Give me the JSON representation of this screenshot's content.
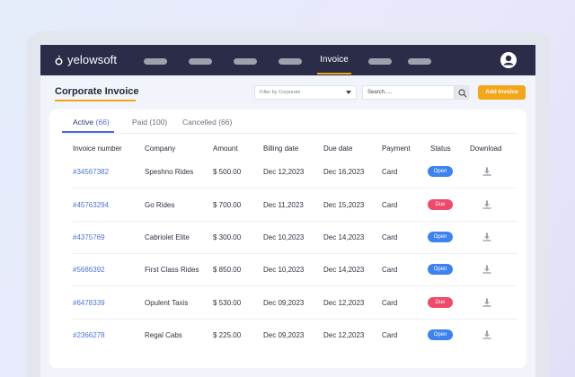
{
  "app": {
    "brand": "yelowsoft",
    "active_nav": "Invoice"
  },
  "page": {
    "title": "Corporate Invoice",
    "filter_placeholder": "Filter by Corporate",
    "search_placeholder": "Search.....",
    "add_button": "Add Invoice"
  },
  "tabs": [
    {
      "label": "Active",
      "count": "(66)"
    },
    {
      "label": "Paid",
      "count": "(100)"
    },
    {
      "label": "Cancelled",
      "count": "(66)"
    }
  ],
  "table": {
    "headers": [
      "Invoice number",
      "Company",
      "Amount",
      "Billing date",
      "Due date",
      "Payment",
      "Status",
      "Download"
    ],
    "rows": [
      {
        "invoice": "#34567382",
        "company": "Speshno Rides",
        "amount": "$ 500.00",
        "billing": "Dec 12,2023",
        "due": "Dec 16,2023",
        "payment": "Card",
        "status": "Open"
      },
      {
        "invoice": "#45763294",
        "company": "Go Rides",
        "amount": "$ 700.00",
        "billing": "Dec 11,2023",
        "due": "Dec 15,2023",
        "payment": "Card",
        "status": "Due"
      },
      {
        "invoice": "#4375769",
        "company": "Cabriolet Elite",
        "amount": "$ 300.00",
        "billing": "Dec 10,2023",
        "due": "Dec 14,2023",
        "payment": "Card",
        "status": "Open"
      },
      {
        "invoice": "#5686392",
        "company": "First Class Rides",
        "amount": "$ 850.00",
        "billing": "Dec 10,2023",
        "due": "Dec 14,2023",
        "payment": "Card",
        "status": "Open"
      },
      {
        "invoice": "#6478339",
        "company": "Opulent Taxis",
        "amount": "$ 530.00",
        "billing": "Dec 09,2023",
        "due": "Dec 12,2023",
        "payment": "Card",
        "status": "Due"
      },
      {
        "invoice": "#2366278",
        "company": "Regal Cabs",
        "amount": "$ 225.00",
        "billing": "Dec 09,2023",
        "due": "Dec 12,2023",
        "payment": "Card",
        "status": "Open"
      }
    ]
  },
  "icons": {
    "logo": "yelowsoft-logo-icon",
    "profile": "user-avatar-icon",
    "search": "search-icon",
    "dropdown": "chevron-down-icon",
    "download": "download-icon"
  },
  "colors": {
    "nav_bg": "#2a2c48",
    "accent": "#f4a61a",
    "link": "#4d74d6",
    "status_open": "#3d83f0",
    "status_due": "#ef4a6a"
  }
}
